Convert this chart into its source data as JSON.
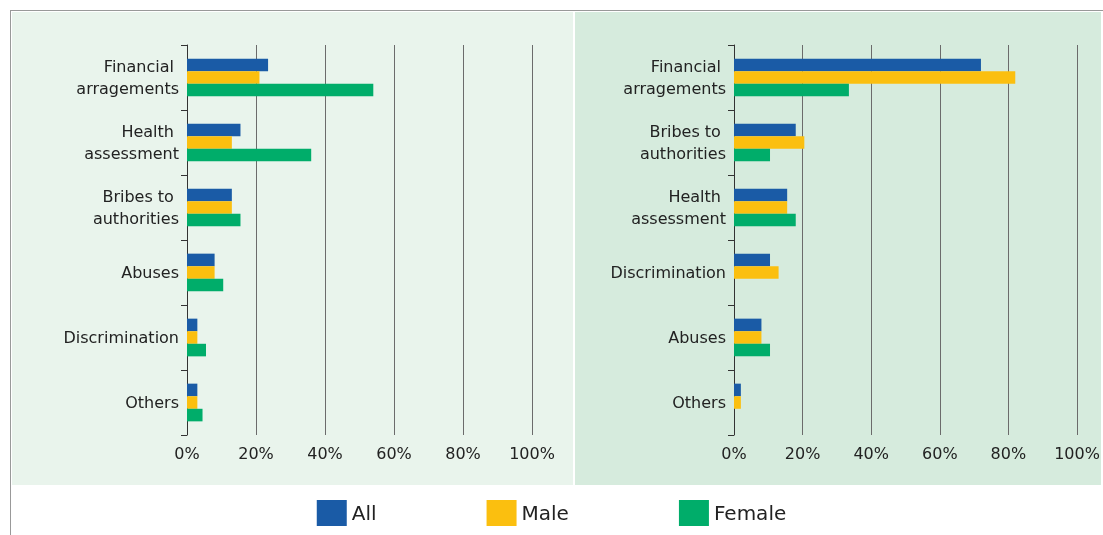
{
  "chart_data": [
    {
      "type": "bar",
      "orientation": "horizontal",
      "categories": [
        "Financial arragements",
        "Health assessment",
        "Bribes to authorities",
        "Abuses",
        "Discrimination",
        "Others"
      ],
      "series": [
        {
          "name": "All",
          "color": "#1a5ba6",
          "values": [
            23.5,
            15.5,
            13,
            8,
            3,
            3
          ]
        },
        {
          "name": "Male",
          "color": "#fbbf0f",
          "values": [
            21,
            13,
            13,
            8,
            3,
            3
          ]
        },
        {
          "name": "Female",
          "color": "#00ad6a",
          "values": [
            54,
            36,
            15.5,
            10.5,
            5.5,
            4.5
          ]
        }
      ],
      "xlim": [
        0,
        100
      ],
      "xticks": [
        {
          "value": 0,
          "label": "0%"
        },
        {
          "value": 20,
          "label": "20%"
        },
        {
          "value": 40,
          "label": "40%"
        },
        {
          "value": 60,
          "label": "60%"
        },
        {
          "value": 80,
          "label": "80%"
        },
        {
          "value": 100,
          "label": "100%"
        }
      ],
      "grid": "x",
      "legend": "bottom"
    },
    {
      "type": "bar",
      "orientation": "horizontal",
      "categories": [
        "Financial arragements",
        "Bribes to authorities",
        "Health assessment",
        "Discrimination",
        "Abuses",
        "Others"
      ],
      "series": [
        {
          "name": "All",
          "color": "#1a5ba6",
          "values": [
            72,
            18,
            15.5,
            10.5,
            8,
            2
          ]
        },
        {
          "name": "Male",
          "color": "#fbbf0f",
          "values": [
            82,
            20.5,
            15.5,
            13,
            8,
            2
          ]
        },
        {
          "name": "Female",
          "color": "#00ad6a",
          "values": [
            33.5,
            10.5,
            18,
            null,
            10.5,
            null
          ]
        }
      ],
      "xlim": [
        0,
        100
      ],
      "xticks": [
        {
          "value": 0,
          "label": "0%"
        },
        {
          "value": 20,
          "label": "20%"
        },
        {
          "value": 40,
          "label": "40%"
        },
        {
          "value": 60,
          "label": "60%"
        },
        {
          "value": 80,
          "label": "80%"
        },
        {
          "value": 100,
          "label": "100%"
        }
      ],
      "grid": "x"
    }
  ]
}
